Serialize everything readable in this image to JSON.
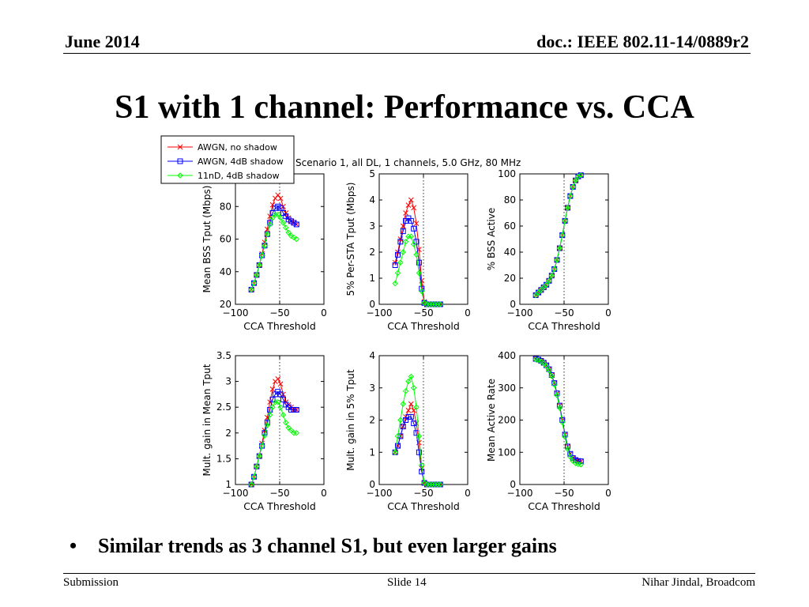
{
  "header": {
    "date": "June 2014",
    "doc_id": "doc.: IEEE 802.11-14/0889r2"
  },
  "title": "S1 with 1 channel: Performance vs. CCA",
  "bullets": [
    "Similar trends as 3 channel S1, but even larger gains"
  ],
  "footer": {
    "left": "Submission",
    "center": "Slide 14",
    "right": "Nihar Jindal, Broadcom"
  },
  "figure": {
    "suptitle": "Scenario 1, all DL, 1 channels, 5.0 GHz, 80 MHz",
    "legend": {
      "placement": "top-left",
      "entries": [
        "AWGN, no shadow",
        "AWGN, 4dB shadow",
        "11nD, 4dB shadow"
      ]
    }
  },
  "chart_data": [
    {
      "type": "line",
      "grid": "dotted-ticks",
      "ylabel": "Mean BSS Tput (Mbps)",
      "xlabel": "CCA Threshold",
      "xlim": [
        -100,
        0
      ],
      "ylim": [
        20,
        100
      ],
      "xticks": [
        -100,
        -50,
        0
      ],
      "yticks": [
        20,
        40,
        60,
        80
      ],
      "x": [
        -82,
        -79,
        -76,
        -73,
        -70,
        -67,
        -64,
        -61,
        -58,
        -55,
        -52,
        -49,
        -46,
        -43,
        -40,
        -37,
        -34,
        -31
      ],
      "series": [
        {
          "name": "AWGN, no shadow",
          "color": "#ff0000",
          "marker": "x",
          "values": [
            29,
            33,
            38,
            44,
            51,
            58,
            66,
            74,
            81,
            85,
            87,
            85,
            80,
            76,
            73,
            71,
            70,
            69
          ]
        },
        {
          "name": "AWGN, 4dB shadow",
          "color": "#0000ff",
          "marker": "square",
          "values": [
            29,
            33,
            38,
            44,
            50,
            56,
            63,
            70,
            76,
            79,
            80,
            79,
            76,
            74,
            72,
            71,
            70,
            69
          ]
        },
        {
          "name": "11nD, 4dB shadow",
          "color": "#00ff00",
          "marker": "diamond",
          "values": [
            29,
            33,
            38,
            44,
            50,
            56,
            63,
            69,
            73,
            75,
            75,
            73,
            70,
            67,
            64,
            62,
            61,
            60
          ]
        }
      ]
    },
    {
      "type": "line",
      "grid": "dotted-ticks",
      "ylabel": "5% Per-STA Tput (Mbps)",
      "xlabel": "CCA Threshold",
      "xlim": [
        -100,
        0
      ],
      "ylim": [
        0,
        5
      ],
      "xticks": [
        -100,
        -50,
        0
      ],
      "yticks": [
        0,
        1,
        2,
        3,
        4,
        5
      ],
      "x": [
        -82,
        -79,
        -76,
        -73,
        -70,
        -67,
        -64,
        -61,
        -58,
        -55,
        -52,
        -49,
        -46,
        -43,
        -40,
        -37,
        -34,
        -31
      ],
      "series": [
        {
          "name": "AWGN, no shadow",
          "color": "#ff0000",
          "marker": "x",
          "values": [
            1.6,
            2.0,
            2.5,
            3.0,
            3.5,
            3.8,
            4.0,
            3.7,
            3.1,
            2.1,
            0.9,
            0.1,
            0,
            0,
            0,
            0,
            0,
            0
          ]
        },
        {
          "name": "AWGN, 4dB shadow",
          "color": "#0000ff",
          "marker": "square",
          "values": [
            1.5,
            1.9,
            2.4,
            2.8,
            3.2,
            3.3,
            3.2,
            2.9,
            2.4,
            1.6,
            0.6,
            0.05,
            0,
            0,
            0,
            0,
            0,
            0
          ]
        },
        {
          "name": "11nD, 4dB shadow",
          "color": "#00ff00",
          "marker": "diamond",
          "values": [
            0.8,
            1.2,
            1.6,
            2.0,
            2.4,
            2.6,
            2.6,
            2.3,
            1.9,
            1.2,
            0.5,
            0.05,
            0,
            0,
            0,
            0,
            0,
            0
          ]
        }
      ]
    },
    {
      "type": "line",
      "grid": "dotted-ticks",
      "ylabel": "% BSS Active",
      "xlabel": "CCA Threshold",
      "xlim": [
        -100,
        0
      ],
      "ylim": [
        0,
        100
      ],
      "xticks": [
        -100,
        -50,
        0
      ],
      "yticks": [
        0,
        20,
        40,
        60,
        80,
        100
      ],
      "x": [
        -82,
        -79,
        -76,
        -73,
        -70,
        -67,
        -64,
        -61,
        -58,
        -55,
        -52,
        -49,
        -46,
        -43,
        -40,
        -37,
        -34,
        -31
      ],
      "series": [
        {
          "name": "AWGN, no shadow",
          "color": "#ff0000",
          "marker": "x",
          "values": [
            7,
            9,
            11,
            13,
            15,
            18,
            22,
            27,
            34,
            43,
            53,
            64,
            74,
            83,
            90,
            95,
            98,
            99
          ]
        },
        {
          "name": "AWGN, 4dB shadow",
          "color": "#0000ff",
          "marker": "square",
          "values": [
            7,
            9,
            11,
            13,
            15,
            18,
            22,
            27,
            34,
            43,
            53,
            64,
            74,
            83,
            90,
            95,
            98,
            99
          ]
        },
        {
          "name": "11nD, 4dB shadow",
          "color": "#00ff00",
          "marker": "diamond",
          "values": [
            7,
            9,
            11,
            13,
            15,
            18,
            22,
            27,
            34,
            43,
            53,
            64,
            74,
            83,
            90,
            95,
            98,
            99
          ]
        }
      ]
    },
    {
      "type": "line",
      "grid": "dotted-ticks",
      "ylabel": "Mult. gain in Mean Tput",
      "xlabel": "CCA Threshold",
      "xlim": [
        -100,
        0
      ],
      "ylim": [
        1,
        3.5
      ],
      "xticks": [
        -100,
        -50,
        0
      ],
      "yticks": [
        1,
        1.5,
        2,
        2.5,
        3,
        3.5
      ],
      "x": [
        -82,
        -79,
        -76,
        -73,
        -70,
        -67,
        -64,
        -61,
        -58,
        -55,
        -52,
        -49,
        -46,
        -43,
        -40,
        -37,
        -34,
        -31
      ],
      "series": [
        {
          "name": "AWGN, no shadow",
          "color": "#ff0000",
          "marker": "x",
          "values": [
            1.0,
            1.15,
            1.35,
            1.55,
            1.8,
            2.05,
            2.3,
            2.6,
            2.85,
            3.0,
            3.05,
            2.95,
            2.75,
            2.6,
            2.55,
            2.5,
            2.45,
            2.45
          ]
        },
        {
          "name": "AWGN, 4dB shadow",
          "color": "#0000ff",
          "marker": "square",
          "values": [
            1.0,
            1.15,
            1.35,
            1.55,
            1.75,
            2.0,
            2.2,
            2.45,
            2.65,
            2.75,
            2.8,
            2.75,
            2.65,
            2.55,
            2.5,
            2.45,
            2.45,
            2.45
          ]
        },
        {
          "name": "11nD, 4dB shadow",
          "color": "#00ff00",
          "marker": "diamond",
          "values": [
            1.0,
            1.15,
            1.35,
            1.55,
            1.75,
            1.95,
            2.15,
            2.35,
            2.5,
            2.6,
            2.6,
            2.5,
            2.35,
            2.2,
            2.1,
            2.05,
            2.0,
            2.0
          ]
        }
      ]
    },
    {
      "type": "line",
      "grid": "dotted-ticks",
      "ylabel": "Mult. gain in 5% Tput",
      "xlabel": "CCA Threshold",
      "xlim": [
        -100,
        0
      ],
      "ylim": [
        0,
        4
      ],
      "xticks": [
        -100,
        -50,
        0
      ],
      "yticks": [
        0,
        1,
        2,
        3,
        4
      ],
      "x": [
        -82,
        -79,
        -76,
        -73,
        -70,
        -67,
        -64,
        -61,
        -58,
        -55,
        -52,
        -49,
        -46,
        -43,
        -40,
        -37,
        -34,
        -31
      ],
      "series": [
        {
          "name": "AWGN, no shadow",
          "color": "#ff0000",
          "marker": "x",
          "values": [
            1.0,
            1.2,
            1.5,
            1.8,
            2.1,
            2.3,
            2.5,
            2.3,
            1.9,
            1.3,
            0.5,
            0.05,
            0,
            0,
            0,
            0,
            0,
            0
          ]
        },
        {
          "name": "AWGN, 4dB shadow",
          "color": "#0000ff",
          "marker": "square",
          "values": [
            1.0,
            1.2,
            1.5,
            1.8,
            2.0,
            2.1,
            2.1,
            1.9,
            1.6,
            1.0,
            0.4,
            0.05,
            0,
            0,
            0,
            0,
            0,
            0
          ]
        },
        {
          "name": "11nD, 4dB shadow",
          "color": "#00ff00",
          "marker": "diamond",
          "values": [
            1.0,
            1.5,
            2.0,
            2.5,
            2.9,
            3.2,
            3.35,
            3.0,
            2.4,
            1.5,
            0.6,
            0.05,
            0,
            0,
            0,
            0,
            0,
            0
          ]
        }
      ]
    },
    {
      "type": "line",
      "grid": "dotted-ticks",
      "ylabel": "Mean Active Rate",
      "xlabel": "CCA Threshold",
      "xlim": [
        -100,
        0
      ],
      "ylim": [
        0,
        400
      ],
      "xticks": [
        -100,
        -50,
        0
      ],
      "yticks": [
        0,
        100,
        200,
        300,
        400
      ],
      "x": [
        -82,
        -79,
        -76,
        -73,
        -70,
        -67,
        -64,
        -61,
        -58,
        -55,
        -52,
        -49,
        -46,
        -43,
        -40,
        -37,
        -34,
        -31
      ],
      "series": [
        {
          "name": "AWGN, no shadow",
          "color": "#ff0000",
          "marker": "x",
          "values": [
            390,
            388,
            384,
            378,
            370,
            358,
            340,
            315,
            283,
            245,
            200,
            155,
            118,
            95,
            82,
            76,
            73,
            72
          ]
        },
        {
          "name": "AWGN, 4dB shadow",
          "color": "#0000ff",
          "marker": "square",
          "values": [
            390,
            388,
            384,
            378,
            370,
            358,
            340,
            315,
            283,
            245,
            200,
            155,
            118,
            95,
            82,
            76,
            73,
            72
          ]
        },
        {
          "name": "11nD, 4dB shadow",
          "color": "#00ff00",
          "marker": "diamond",
          "values": [
            388,
            386,
            382,
            376,
            367,
            354,
            336,
            310,
            277,
            238,
            193,
            148,
            110,
            86,
            73,
            66,
            63,
            62
          ]
        }
      ]
    }
  ]
}
